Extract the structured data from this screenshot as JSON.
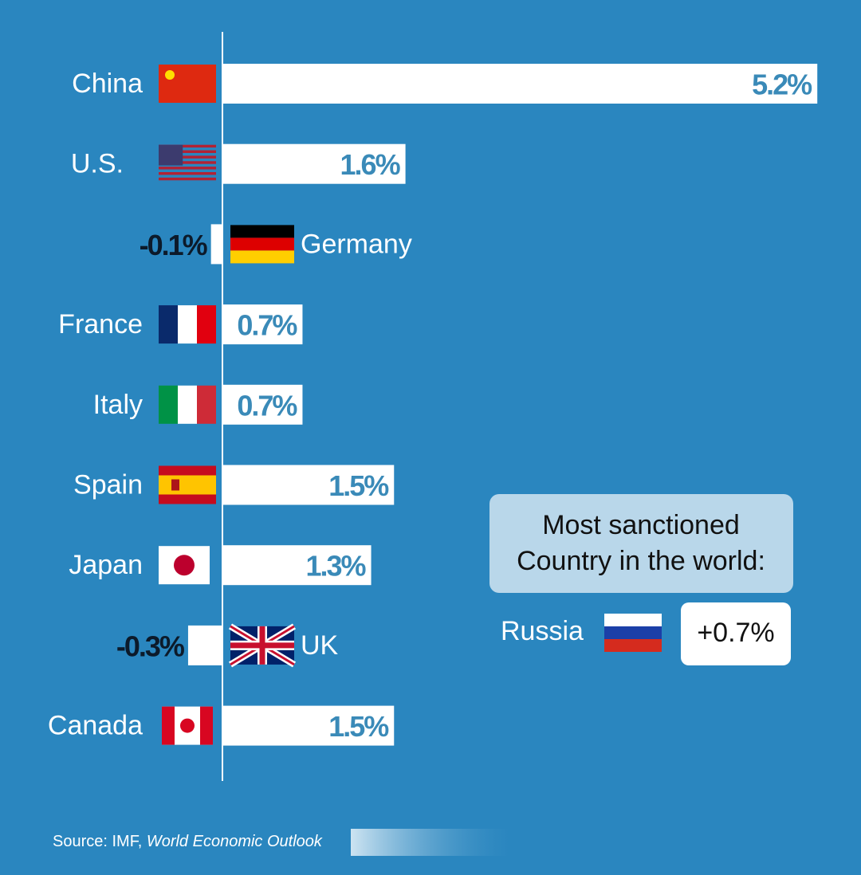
{
  "chart_data": {
    "type": "bar",
    "orientation": "horizontal",
    "categories": [
      "China",
      "U.S.",
      "Germany",
      "France",
      "Italy",
      "Spain",
      "Japan",
      "UK",
      "Canada"
    ],
    "values": [
      5.2,
      1.6,
      -0.1,
      0.7,
      0.7,
      1.5,
      1.3,
      -0.3,
      1.5
    ],
    "value_labels": [
      "5.2%",
      "1.6%",
      "-0.1%",
      "0.7%",
      "0.7%",
      "1.5%",
      "1.3%",
      "-0.3%",
      "1.5%"
    ],
    "color": "#ffffff",
    "annotation": {
      "lines": [
        "Most sanctioned",
        "Country in the world:"
      ],
      "country": "Russia",
      "value": 0.7,
      "value_label": "+0.7%"
    },
    "source": {
      "prefix": "Source: IMF,",
      "title": "World Economic Outlook"
    }
  }
}
